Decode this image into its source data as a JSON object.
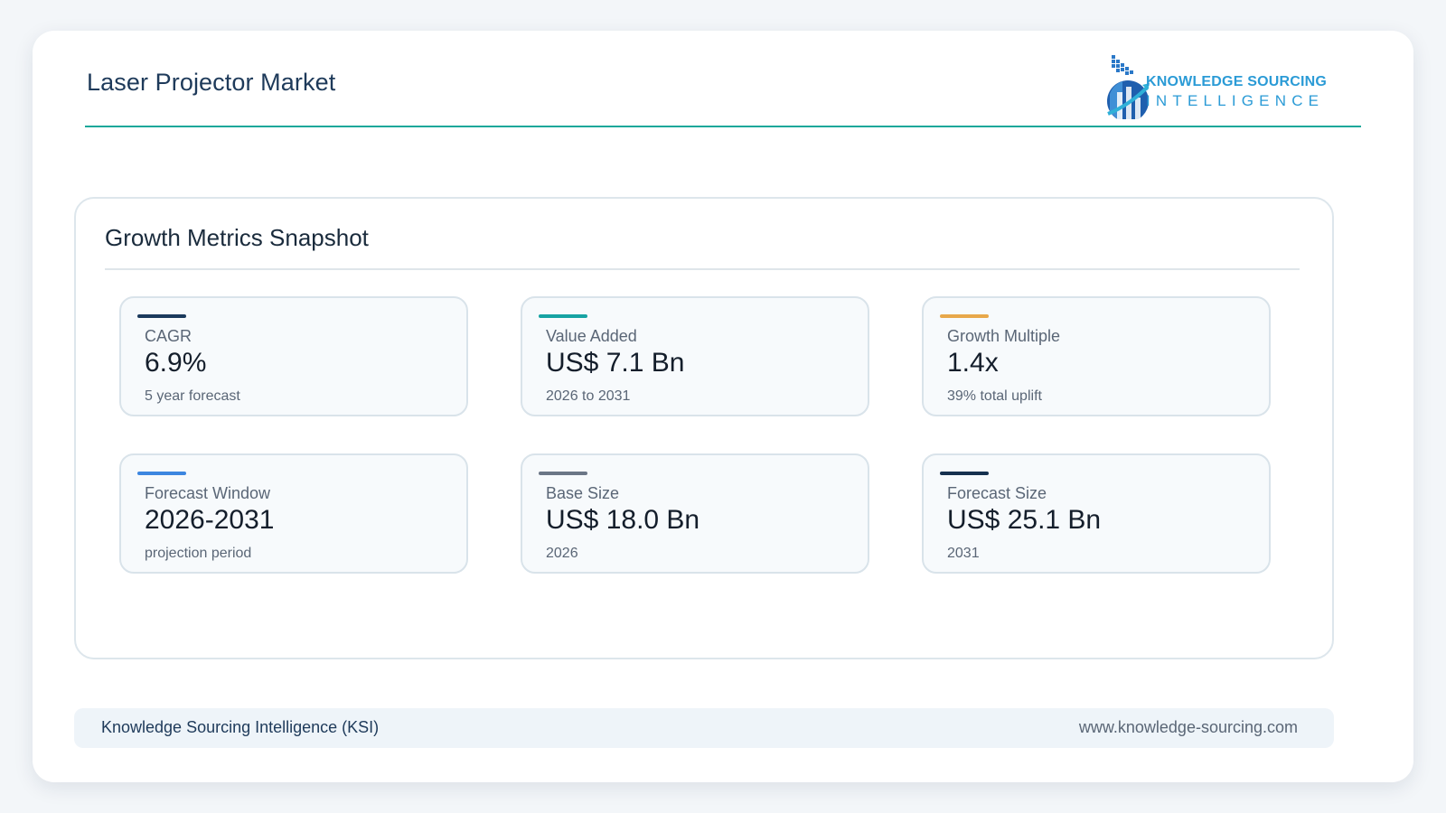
{
  "header": {
    "title": "Laser Projector Market",
    "logo": {
      "line1": "KNOWLEDGE SOURCING",
      "line2": "INTELLIGENCE",
      "icon": "ksi-logo-icon"
    },
    "accent_color": "#1aa89a"
  },
  "panel": {
    "title": "Growth Metrics Snapshot",
    "metrics": [
      {
        "label": "CAGR",
        "value": "6.9%",
        "sub": "5 year forecast",
        "color": "#1b3a5c"
      },
      {
        "label": "Value Added",
        "value": "US$ 7.1 Bn",
        "sub": "2026 to 2031",
        "color": "#17a3a3"
      },
      {
        "label": "Growth Multiple",
        "value": "1.4x",
        "sub": "39% total uplift",
        "color": "#e8a84a"
      },
      {
        "label": "Forecast Window",
        "value": "2026-2031",
        "sub": "projection period",
        "color": "#3d86e0"
      },
      {
        "label": "Base Size",
        "value": "US$ 18.0 Bn",
        "sub": "2026",
        "color": "#6b7686"
      },
      {
        "label": "Forecast Size",
        "value": "US$ 25.1 Bn",
        "sub": "2031",
        "color": "#16314f"
      }
    ]
  },
  "footer": {
    "left": "Knowledge Sourcing Intelligence (KSI)",
    "right": "www.knowledge-sourcing.com"
  }
}
